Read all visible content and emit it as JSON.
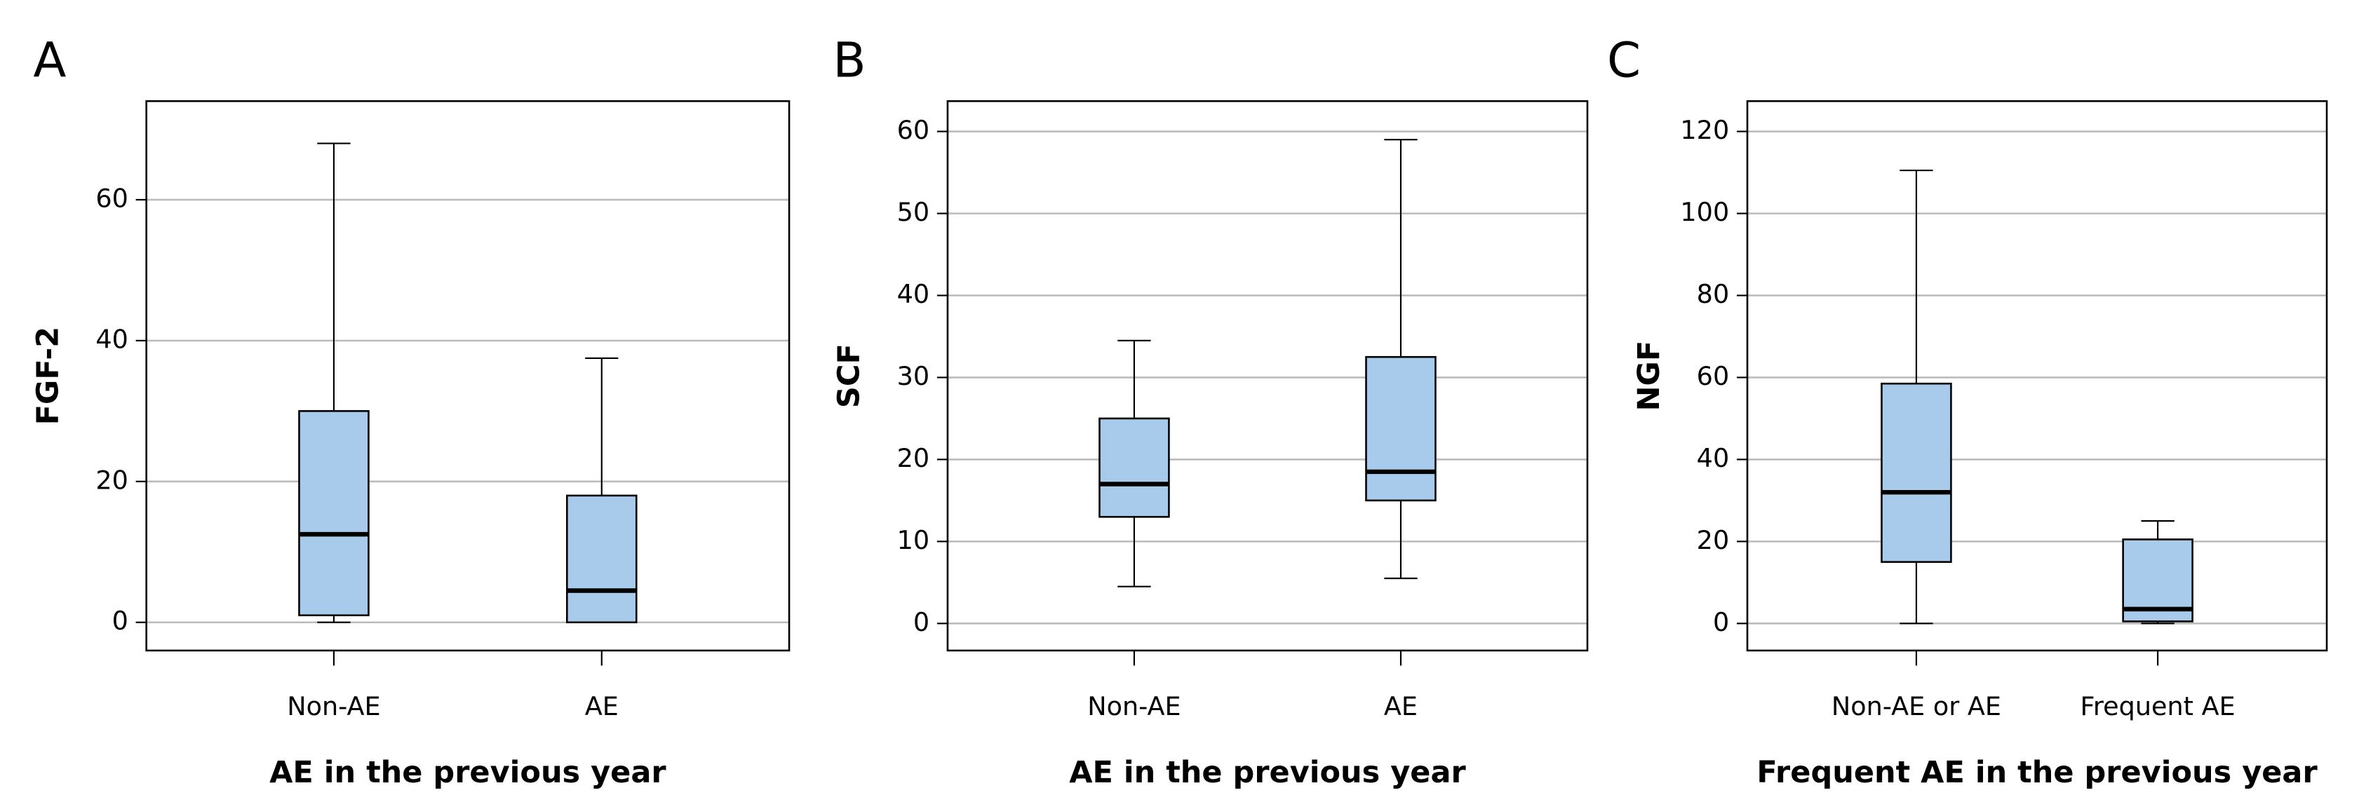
{
  "chart_data": [
    {
      "type": "box",
      "panel_label": "A",
      "y_label": "FGF-2",
      "x_label": "AE in the previous year",
      "categories": [
        "Non-AE",
        "AE"
      ],
      "boxes": [
        {
          "min": 0,
          "q1": 1,
          "median": 12.5,
          "q3": 30,
          "max": 68
        },
        {
          "min": 0,
          "q1": 0,
          "median": 4.5,
          "q3": 18,
          "max": 37.5
        }
      ],
      "color": "#a9cbeb",
      "ylim": [
        -4,
        74
      ],
      "yticks": [
        0,
        20,
        40,
        60
      ],
      "grid": true
    },
    {
      "type": "box",
      "panel_label": "B",
      "y_label": "SCF",
      "x_label": "AE in the previous year",
      "categories": [
        "Non-AE",
        "AE"
      ],
      "boxes": [
        {
          "min": 4.5,
          "q1": 13,
          "median": 17,
          "q3": 25,
          "max": 34.5
        },
        {
          "min": 5.5,
          "q1": 15,
          "median": 18.5,
          "q3": 32.5,
          "max": 59
        }
      ],
      "color": "#a9cbeb",
      "ylim": [
        -3.3,
        63.7
      ],
      "yticks": [
        0,
        10,
        20,
        30,
        40,
        50,
        60
      ],
      "grid": true
    },
    {
      "type": "box",
      "panel_label": "C",
      "y_label": "NGF",
      "x_label": "Frequent AE in the previous year",
      "categories": [
        "Non-AE or AE",
        "Frequent AE"
      ],
      "boxes": [
        {
          "min": 0,
          "q1": 15,
          "median": 32,
          "q3": 58.5,
          "max": 110.5
        },
        {
          "min": 0,
          "q1": 0.5,
          "median": 3.5,
          "q3": 20.5,
          "max": 25
        }
      ],
      "color": "#a9cbeb",
      "ylim": [
        -6.6,
        127.4
      ],
      "yticks": [
        0,
        20,
        40,
        60,
        80,
        100,
        120
      ],
      "grid": true
    }
  ]
}
